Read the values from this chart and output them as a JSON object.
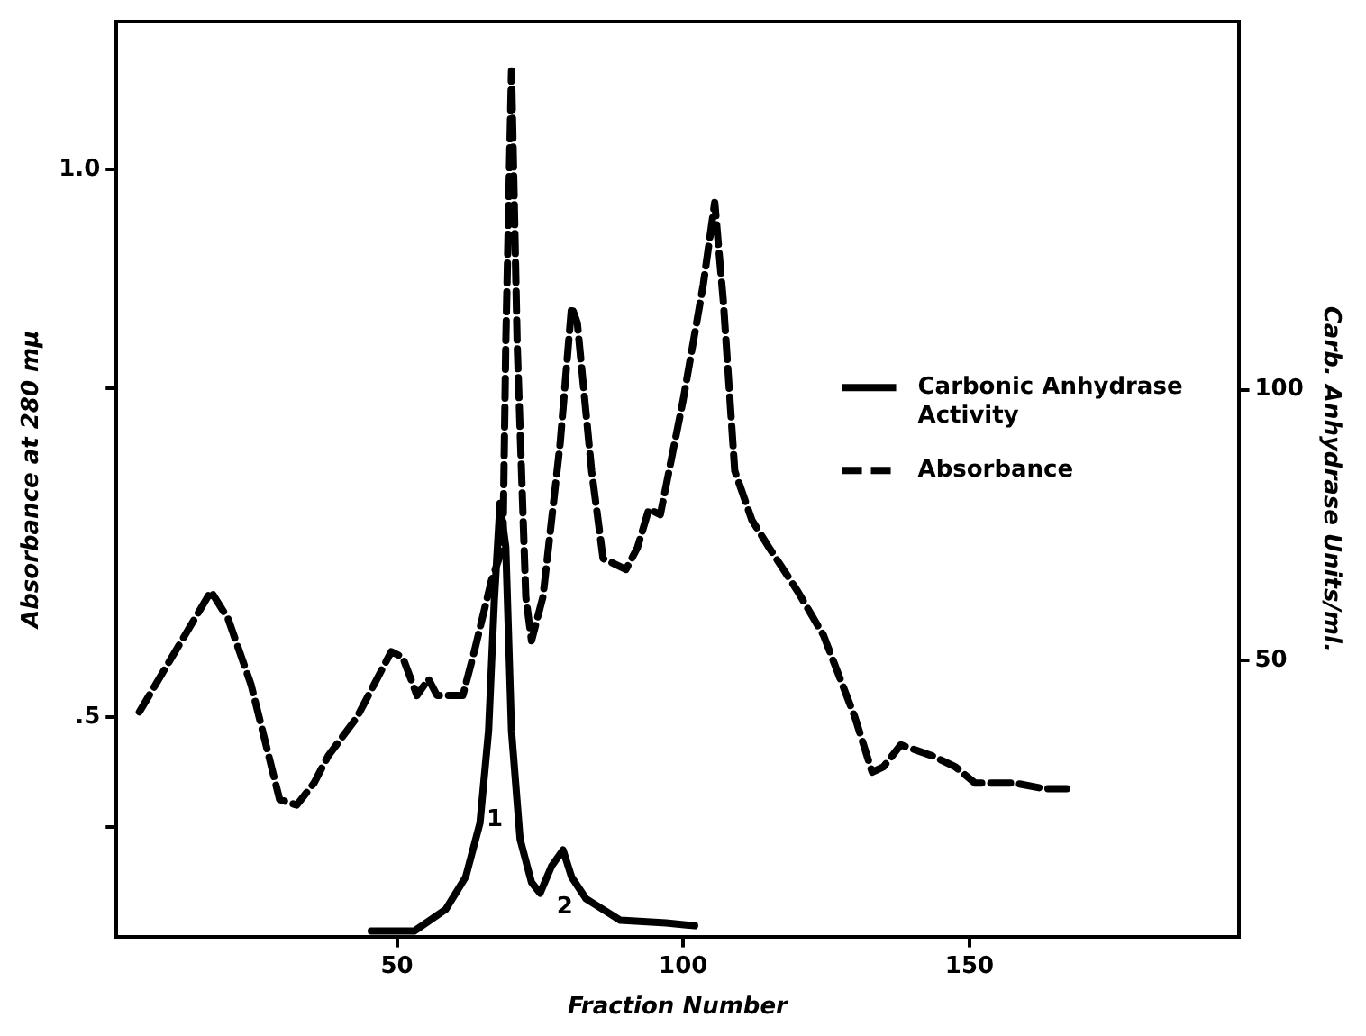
{
  "chart_data": {
    "type": "line",
    "xlabel": "Fraction Number",
    "ylabel": "Absorbance at 280 mμ",
    "y2label": "Carb. Anhydrase Units/ml.",
    "xlim": [
      1,
      197
    ],
    "xticks": [
      50,
      100,
      150
    ],
    "ylim": [
      0.3,
      1.135
    ],
    "yticks": [
      {
        "value": 0.4,
        "label": null
      },
      {
        "value": 0.5,
        "label": ".5"
      },
      {
        "value": 0.8,
        "label": null
      },
      {
        "value": 1.0,
        "label": "1.0"
      }
    ],
    "y2lim": [
      -1,
      168
    ],
    "y2ticks": [
      50,
      100
    ],
    "grid": false,
    "legend": "right",
    "marker": "none",
    "series": [
      {
        "name": "Carbonic Anhydrase Activity",
        "color": "#000000",
        "axis": "y2",
        "line_style": "solid",
        "x": [
          45.5,
          53,
          58.5,
          62,
          64.5,
          66,
          67,
          68,
          69,
          70,
          71.5,
          73.5,
          75,
          77,
          79,
          80.5,
          83,
          89,
          97,
          102
        ],
        "values": [
          0,
          0,
          4,
          10,
          20,
          37,
          61,
          79,
          71,
          37,
          17,
          9,
          7,
          12,
          15,
          10,
          6,
          2,
          1.5,
          1
        ]
      },
      {
        "name": "Absorbance",
        "color": "#000000",
        "line_style": "dashed",
        "x": [
          5,
          17.5,
          20.5,
          24.5,
          29.5,
          32.5,
          35.5,
          38,
          43,
          46,
          49,
          51,
          53.5,
          55.5,
          57,
          61.5,
          63.5,
          66.5,
          68.5,
          69,
          70,
          71,
          72.5,
          73.5,
          75.5,
          78.5,
          80.5,
          81.5,
          84,
          86,
          90,
          92,
          94,
          96,
          100,
          103.5,
          105.5,
          107,
          109,
          112,
          115,
          120,
          124.5,
          130,
          133,
          135,
          138,
          143.5,
          147.5,
          151,
          158,
          163,
          167
        ],
        "values": [
          0.505,
          0.615,
          0.59,
          0.53,
          0.425,
          0.42,
          0.44,
          0.465,
          0.5,
          0.53,
          0.56,
          0.555,
          0.52,
          0.535,
          0.52,
          0.52,
          0.56,
          0.625,
          0.655,
          0.84,
          1.09,
          0.84,
          0.61,
          0.57,
          0.61,
          0.75,
          0.875,
          0.86,
          0.725,
          0.645,
          0.635,
          0.655,
          0.69,
          0.685,
          0.79,
          0.895,
          0.97,
          0.88,
          0.725,
          0.68,
          0.655,
          0.615,
          0.575,
          0.5,
          0.45,
          0.455,
          0.475,
          0.465,
          0.455,
          0.44,
          0.44,
          0.435,
          0.435
        ]
      }
    ],
    "annotations": [
      "1",
      "2"
    ]
  }
}
